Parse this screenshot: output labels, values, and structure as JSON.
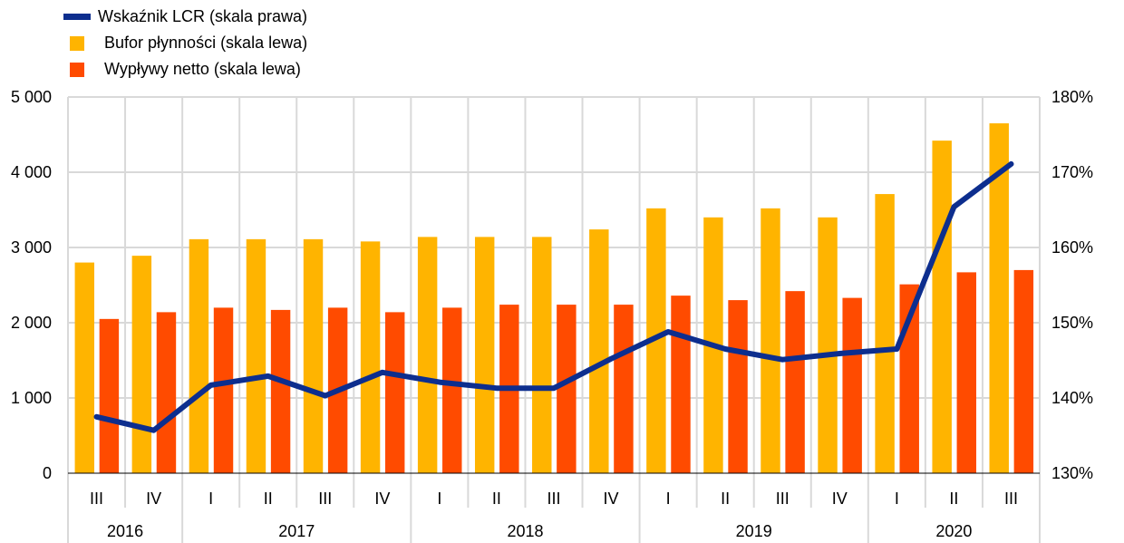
{
  "legend": {
    "lcr": "Wskaźnik LCR (skala prawa)",
    "buffer": "Bufor płynności (skala lewa)",
    "outflows": "Wypływy netto (skala lewa)"
  },
  "colors": {
    "lcr": "#0d2e8e",
    "buffer": "#ffb400",
    "outflows": "#ff4b00",
    "grid": "#d9d9d9"
  },
  "chart_data": {
    "type": "bar",
    "quarters": [
      "III",
      "IV",
      "I",
      "II",
      "III",
      "IV",
      "I",
      "II",
      "III",
      "IV",
      "I",
      "II",
      "III",
      "IV",
      "I",
      "II",
      "III"
    ],
    "years": [
      {
        "label": "2016",
        "count": 2
      },
      {
        "label": "2017",
        "count": 4
      },
      {
        "label": "2018",
        "count": 4
      },
      {
        "label": "2019",
        "count": 4
      },
      {
        "label": "2020",
        "count": 3
      }
    ],
    "series": [
      {
        "key": "buffer",
        "name": "Bufor płynności (skala lewa)",
        "axis": "left",
        "kind": "bar",
        "values": [
          2800,
          2890,
          3110,
          3110,
          3110,
          3080,
          3140,
          3140,
          3140,
          3240,
          3520,
          3400,
          3520,
          3400,
          3710,
          4420,
          4650
        ]
      },
      {
        "key": "outflows",
        "name": "Wypływy netto (skala lewa)",
        "axis": "left",
        "kind": "bar",
        "values": [
          2050,
          2140,
          2200,
          2170,
          2200,
          2140,
          2200,
          2240,
          2240,
          2240,
          2360,
          2300,
          2420,
          2330,
          2510,
          2670,
          2700
        ]
      },
      {
        "key": "lcr",
        "name": "Wskaźnik LCR (skala prawa)",
        "axis": "right",
        "kind": "line",
        "values": [
          137.5,
          135.7,
          141.7,
          142.9,
          140.3,
          143.4,
          142.1,
          141.3,
          141.3,
          145.2,
          148.8,
          146.5,
          145.1,
          145.9,
          146.5,
          165.4,
          171.1
        ]
      }
    ],
    "left_axis": {
      "min": 0,
      "max": 5000,
      "ticks": [
        0,
        1000,
        2000,
        3000,
        4000,
        5000
      ],
      "tick_labels": [
        "0",
        "1 000",
        "2 000",
        "3 000",
        "4 000",
        "5 000"
      ]
    },
    "right_axis": {
      "min": 130,
      "max": 180,
      "ticks": [
        130,
        140,
        150,
        160,
        170,
        180
      ],
      "tick_labels": [
        "130%",
        "140%",
        "150%",
        "160%",
        "170%",
        "180%"
      ]
    },
    "grid": true,
    "legend_position": "top-left"
  }
}
